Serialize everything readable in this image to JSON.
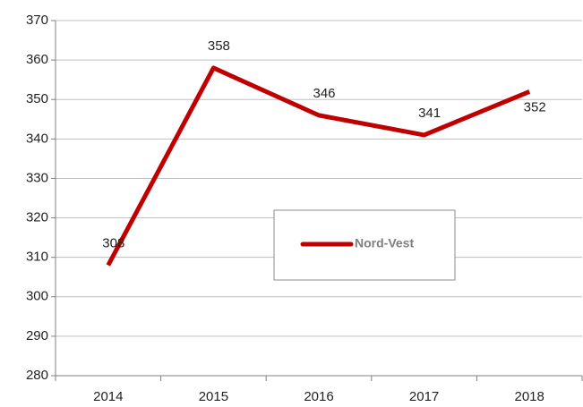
{
  "chart_data": {
    "type": "line",
    "categories": [
      "2014",
      "2015",
      "2016",
      "2017",
      "2018"
    ],
    "series": [
      {
        "name": "Nord-Vest",
        "color": "#c00000",
        "values": [
          308,
          358,
          346,
          341,
          352
        ]
      }
    ],
    "ylim": [
      280,
      370
    ],
    "yticks": [
      280,
      290,
      300,
      310,
      320,
      330,
      340,
      350,
      360,
      370
    ],
    "grid": true,
    "legend": "center",
    "data_labels": true
  }
}
